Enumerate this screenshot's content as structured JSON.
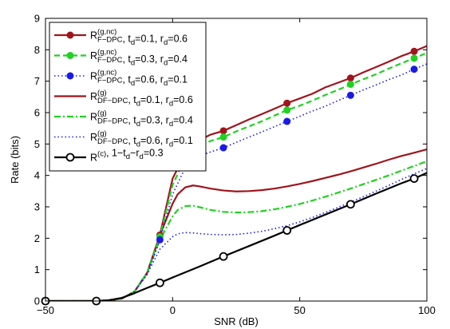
{
  "chart_data": {
    "type": "line",
    "title": "",
    "xlabel": "SNR (dB)",
    "ylabel": "Rate (bits)",
    "xlim": [
      -50,
      100
    ],
    "ylim": [
      0,
      9
    ],
    "xticks": [
      -50,
      0,
      50,
      100
    ],
    "yticks": [
      0,
      1,
      2,
      3,
      4,
      5,
      6,
      7,
      8,
      9
    ],
    "xtick_labels": [
      "−50",
      "0",
      "50",
      "100"
    ],
    "ytick_labels": [
      "0",
      "1",
      "2",
      "3",
      "4",
      "5",
      "6",
      "7",
      "8",
      "9"
    ],
    "grid": false,
    "legend_position": "top-left",
    "series": [
      {
        "key": "fdpc1",
        "legend": {
          "base": "R",
          "sup": "(g,nc)",
          "sub": "F−DPC",
          "tail": [
            ", t",
            "d",
            "=0.1, r",
            "d",
            "=0.6"
          ]
        },
        "color": "#a0141c",
        "linestyle": "solid",
        "marker": "circle-filled",
        "x": [
          -50,
          -30,
          -25,
          -20,
          -15,
          -10,
          -5,
          0,
          5,
          10,
          15,
          20,
          25,
          30,
          35,
          40,
          45,
          50,
          55,
          60,
          65,
          70,
          75,
          80,
          85,
          90,
          95,
          100
        ],
        "y": [
          0,
          0,
          0.02,
          0.08,
          0.3,
          0.9,
          2.1,
          3.9,
          4.7,
          5.1,
          5.3,
          5.42,
          5.6,
          5.78,
          5.95,
          6.12,
          6.3,
          6.45,
          6.6,
          6.8,
          6.95,
          7.1,
          7.28,
          7.45,
          7.62,
          7.8,
          7.95,
          8.12
        ],
        "marker_x": [
          -50,
          -30,
          -5,
          20,
          45,
          70,
          95
        ]
      },
      {
        "key": "fdpc2",
        "legend": {
          "base": "R",
          "sup": "(g,nc)",
          "sub": "F−DPC",
          "tail": [
            ", t",
            "d",
            "=0.3, r",
            "d",
            "=0.4"
          ]
        },
        "color": "#1fd21f",
        "linestyle": "dash",
        "marker": "circle-filled",
        "x": [
          -50,
          -30,
          -25,
          -20,
          -15,
          -10,
          -5,
          0,
          5,
          10,
          15,
          20,
          25,
          30,
          35,
          40,
          45,
          50,
          55,
          60,
          65,
          70,
          75,
          80,
          85,
          90,
          95,
          100
        ],
        "y": [
          0,
          0,
          0.02,
          0.08,
          0.3,
          0.9,
          2.05,
          3.7,
          4.55,
          4.9,
          5.1,
          5.22,
          5.4,
          5.56,
          5.72,
          5.9,
          6.08,
          6.22,
          6.38,
          6.56,
          6.72,
          6.9,
          7.06,
          7.22,
          7.4,
          7.57,
          7.73,
          7.9
        ],
        "marker_x": [
          -50,
          -30,
          -5,
          20,
          45,
          70,
          95
        ]
      },
      {
        "key": "fdpc3",
        "legend": {
          "base": "R",
          "sup": "(g,nc)",
          "sub": "F−DPC",
          "tail": [
            ", t",
            "d",
            "=0.6, r",
            "d",
            "=0.1"
          ]
        },
        "color": "#1a1ae6",
        "linestyle": "dot",
        "marker": "circle-filled",
        "x": [
          -50,
          -30,
          -25,
          -20,
          -15,
          -10,
          -5,
          0,
          5,
          10,
          15,
          20,
          25,
          30,
          35,
          40,
          45,
          50,
          55,
          60,
          65,
          70,
          75,
          80,
          85,
          90,
          95,
          100
        ],
        "y": [
          0,
          0,
          0.02,
          0.08,
          0.3,
          0.85,
          1.95,
          3.4,
          4.25,
          4.6,
          4.75,
          4.88,
          5.05,
          5.22,
          5.38,
          5.55,
          5.72,
          5.88,
          6.05,
          6.2,
          6.38,
          6.55,
          6.72,
          6.88,
          7.05,
          7.2,
          7.38,
          7.55
        ],
        "marker_x": [
          -50,
          -30,
          -5,
          20,
          45,
          70,
          95
        ]
      },
      {
        "key": "dfdpc1",
        "legend": {
          "base": "R",
          "sup": "(g)",
          "sub": "DF−DPC",
          "tail": [
            ", t",
            "d",
            "=0.1, r",
            "d",
            "=0.6"
          ]
        },
        "color": "#a0141c",
        "linestyle": "solid",
        "marker": "none",
        "x": [
          -50,
          -30,
          -25,
          -20,
          -15,
          -10,
          -5,
          0,
          2,
          5,
          8,
          10,
          15,
          20,
          25,
          30,
          35,
          40,
          45,
          50,
          55,
          60,
          65,
          70,
          75,
          80,
          85,
          90,
          95,
          100
        ],
        "y": [
          0,
          0,
          0.02,
          0.08,
          0.3,
          0.9,
          2.1,
          3.1,
          3.4,
          3.62,
          3.68,
          3.66,
          3.58,
          3.52,
          3.49,
          3.5,
          3.53,
          3.58,
          3.65,
          3.73,
          3.82,
          3.92,
          4.02,
          4.13,
          4.25,
          4.37,
          4.5,
          4.62,
          4.72,
          4.83
        ]
      },
      {
        "key": "dfdpc2",
        "legend": {
          "base": "R",
          "sup": "(g)",
          "sub": "DF−DPC",
          "tail": [
            ", t",
            "d",
            "=0.3, r",
            "d",
            "=0.4"
          ]
        },
        "color": "#1fd21f",
        "linestyle": "dashdot",
        "marker": "none",
        "x": [
          -50,
          -30,
          -25,
          -20,
          -15,
          -10,
          -5,
          0,
          2,
          5,
          8,
          10,
          15,
          20,
          25,
          30,
          35,
          40,
          45,
          50,
          55,
          60,
          65,
          70,
          75,
          80,
          85,
          90,
          95,
          100
        ],
        "y": [
          0,
          0,
          0.02,
          0.08,
          0.3,
          0.9,
          1.95,
          2.7,
          2.9,
          3.02,
          3.04,
          3.0,
          2.9,
          2.84,
          2.82,
          2.83,
          2.86,
          2.92,
          3.0,
          3.09,
          3.2,
          3.32,
          3.45,
          3.58,
          3.72,
          3.86,
          4.0,
          4.15,
          4.3,
          4.45
        ]
      },
      {
        "key": "dfdpc3",
        "legend": {
          "base": "R",
          "sup": "(g)",
          "sub": "DF−DPC",
          "tail": [
            ", t",
            "d",
            "=0.6, r",
            "d",
            "=0.1"
          ]
        },
        "color": "#1a1ae6",
        "linestyle": "dot",
        "marker": "none",
        "x": [
          -50,
          -30,
          -25,
          -20,
          -15,
          -10,
          -5,
          0,
          2,
          5,
          8,
          10,
          15,
          20,
          25,
          30,
          35,
          40,
          45,
          50,
          55,
          60,
          65,
          70,
          75,
          80,
          85,
          90,
          95,
          100
        ],
        "y": [
          0,
          0,
          0.02,
          0.08,
          0.3,
          0.85,
          1.65,
          2.05,
          2.14,
          2.18,
          2.17,
          2.15,
          2.12,
          2.11,
          2.12,
          2.16,
          2.22,
          2.3,
          2.4,
          2.52,
          2.66,
          2.82,
          2.98,
          3.15,
          3.32,
          3.5,
          3.68,
          3.87,
          4.05,
          4.22
        ]
      },
      {
        "key": "central",
        "legend": {
          "base": "R",
          "sup": "(c)",
          "sub": "",
          "tail": [
            ", 1−t",
            "d",
            "−r",
            "d",
            "=0.3"
          ]
        },
        "color": "#000000",
        "linestyle": "solid",
        "marker": "circle-open",
        "x": [
          -50,
          -30,
          -25,
          -20,
          -15,
          -10,
          -5,
          0,
          10,
          20,
          30,
          40,
          45,
          50,
          60,
          70,
          80,
          90,
          95,
          100
        ],
        "y": [
          0,
          0,
          0.03,
          0.1,
          0.25,
          0.42,
          0.58,
          0.75,
          1.08,
          1.42,
          1.75,
          2.08,
          2.25,
          2.42,
          2.75,
          3.08,
          3.42,
          3.75,
          3.9,
          4.08
        ],
        "marker_x": [
          -50,
          -30,
          -5,
          20,
          45,
          70,
          95
        ]
      }
    ]
  }
}
